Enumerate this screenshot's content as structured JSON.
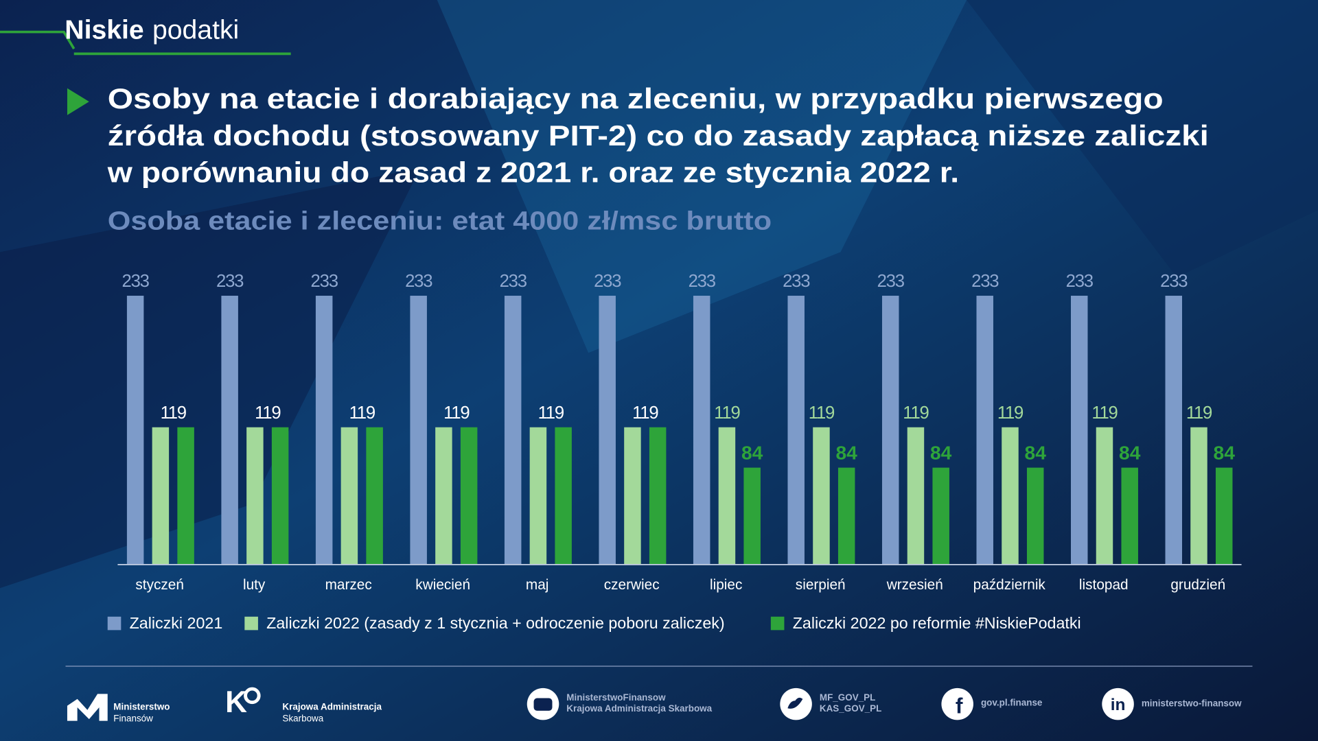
{
  "header": {
    "brand": [
      "Niskie",
      "podatki"
    ]
  },
  "chart_data": {
    "type": "bar",
    "title": [
      "Osoby na etacie i dorabiający na zleceniu, w przypadku pierwszego",
      "źródła dochodu (stosowany PIT-2) co do zasady zapłacą niższe zaliczki",
      "w porównaniu do zasad z 2021 r. oraz ze stycznia 2022 r."
    ],
    "subtitle": "Osoba etacie i zleceniu: etat 4000 zł/msc brutto",
    "categories": [
      "styczeń",
      "luty",
      "marzec",
      "kwiecień",
      "maj",
      "czerwiec",
      "lipiec",
      "sierpień",
      "wrzesień",
      "październik",
      "listopad",
      "grudzień"
    ],
    "series": [
      {
        "name": "Zaliczki 2021",
        "color": "#7d9bc9",
        "values": [
          233,
          233,
          233,
          233,
          233,
          233,
          233,
          233,
          233,
          233,
          233,
          233
        ]
      },
      {
        "name": "Zaliczki 2022 (zasady z 1 stycznia + odroczenie poboru zaliczek)",
        "color": "#a3d99a",
        "values": [
          119,
          119,
          119,
          119,
          119,
          119,
          119,
          119,
          119,
          119,
          119,
          119
        ]
      },
      {
        "name": "Zaliczki 2022 po reformie #NiskiePodatki",
        "color": "#2ea43a",
        "values": [
          119,
          119,
          119,
          119,
          119,
          119,
          84,
          84,
          84,
          84,
          84,
          84
        ]
      }
    ]
  },
  "footer": {
    "mf": [
      "Ministerstwo",
      "Finansów"
    ],
    "kas": [
      "Krajowa Administracja",
      "Skarbowa"
    ],
    "youtube": [
      "MinisterstwoFinansow",
      "Krajowa Administracja Skarbowa"
    ],
    "twitter": [
      "MF_GOV_PL",
      "KAS_GOV_PL"
    ],
    "facebook": "gov.pl.finanse",
    "linkedin": "ministerstwo-finansow"
  }
}
